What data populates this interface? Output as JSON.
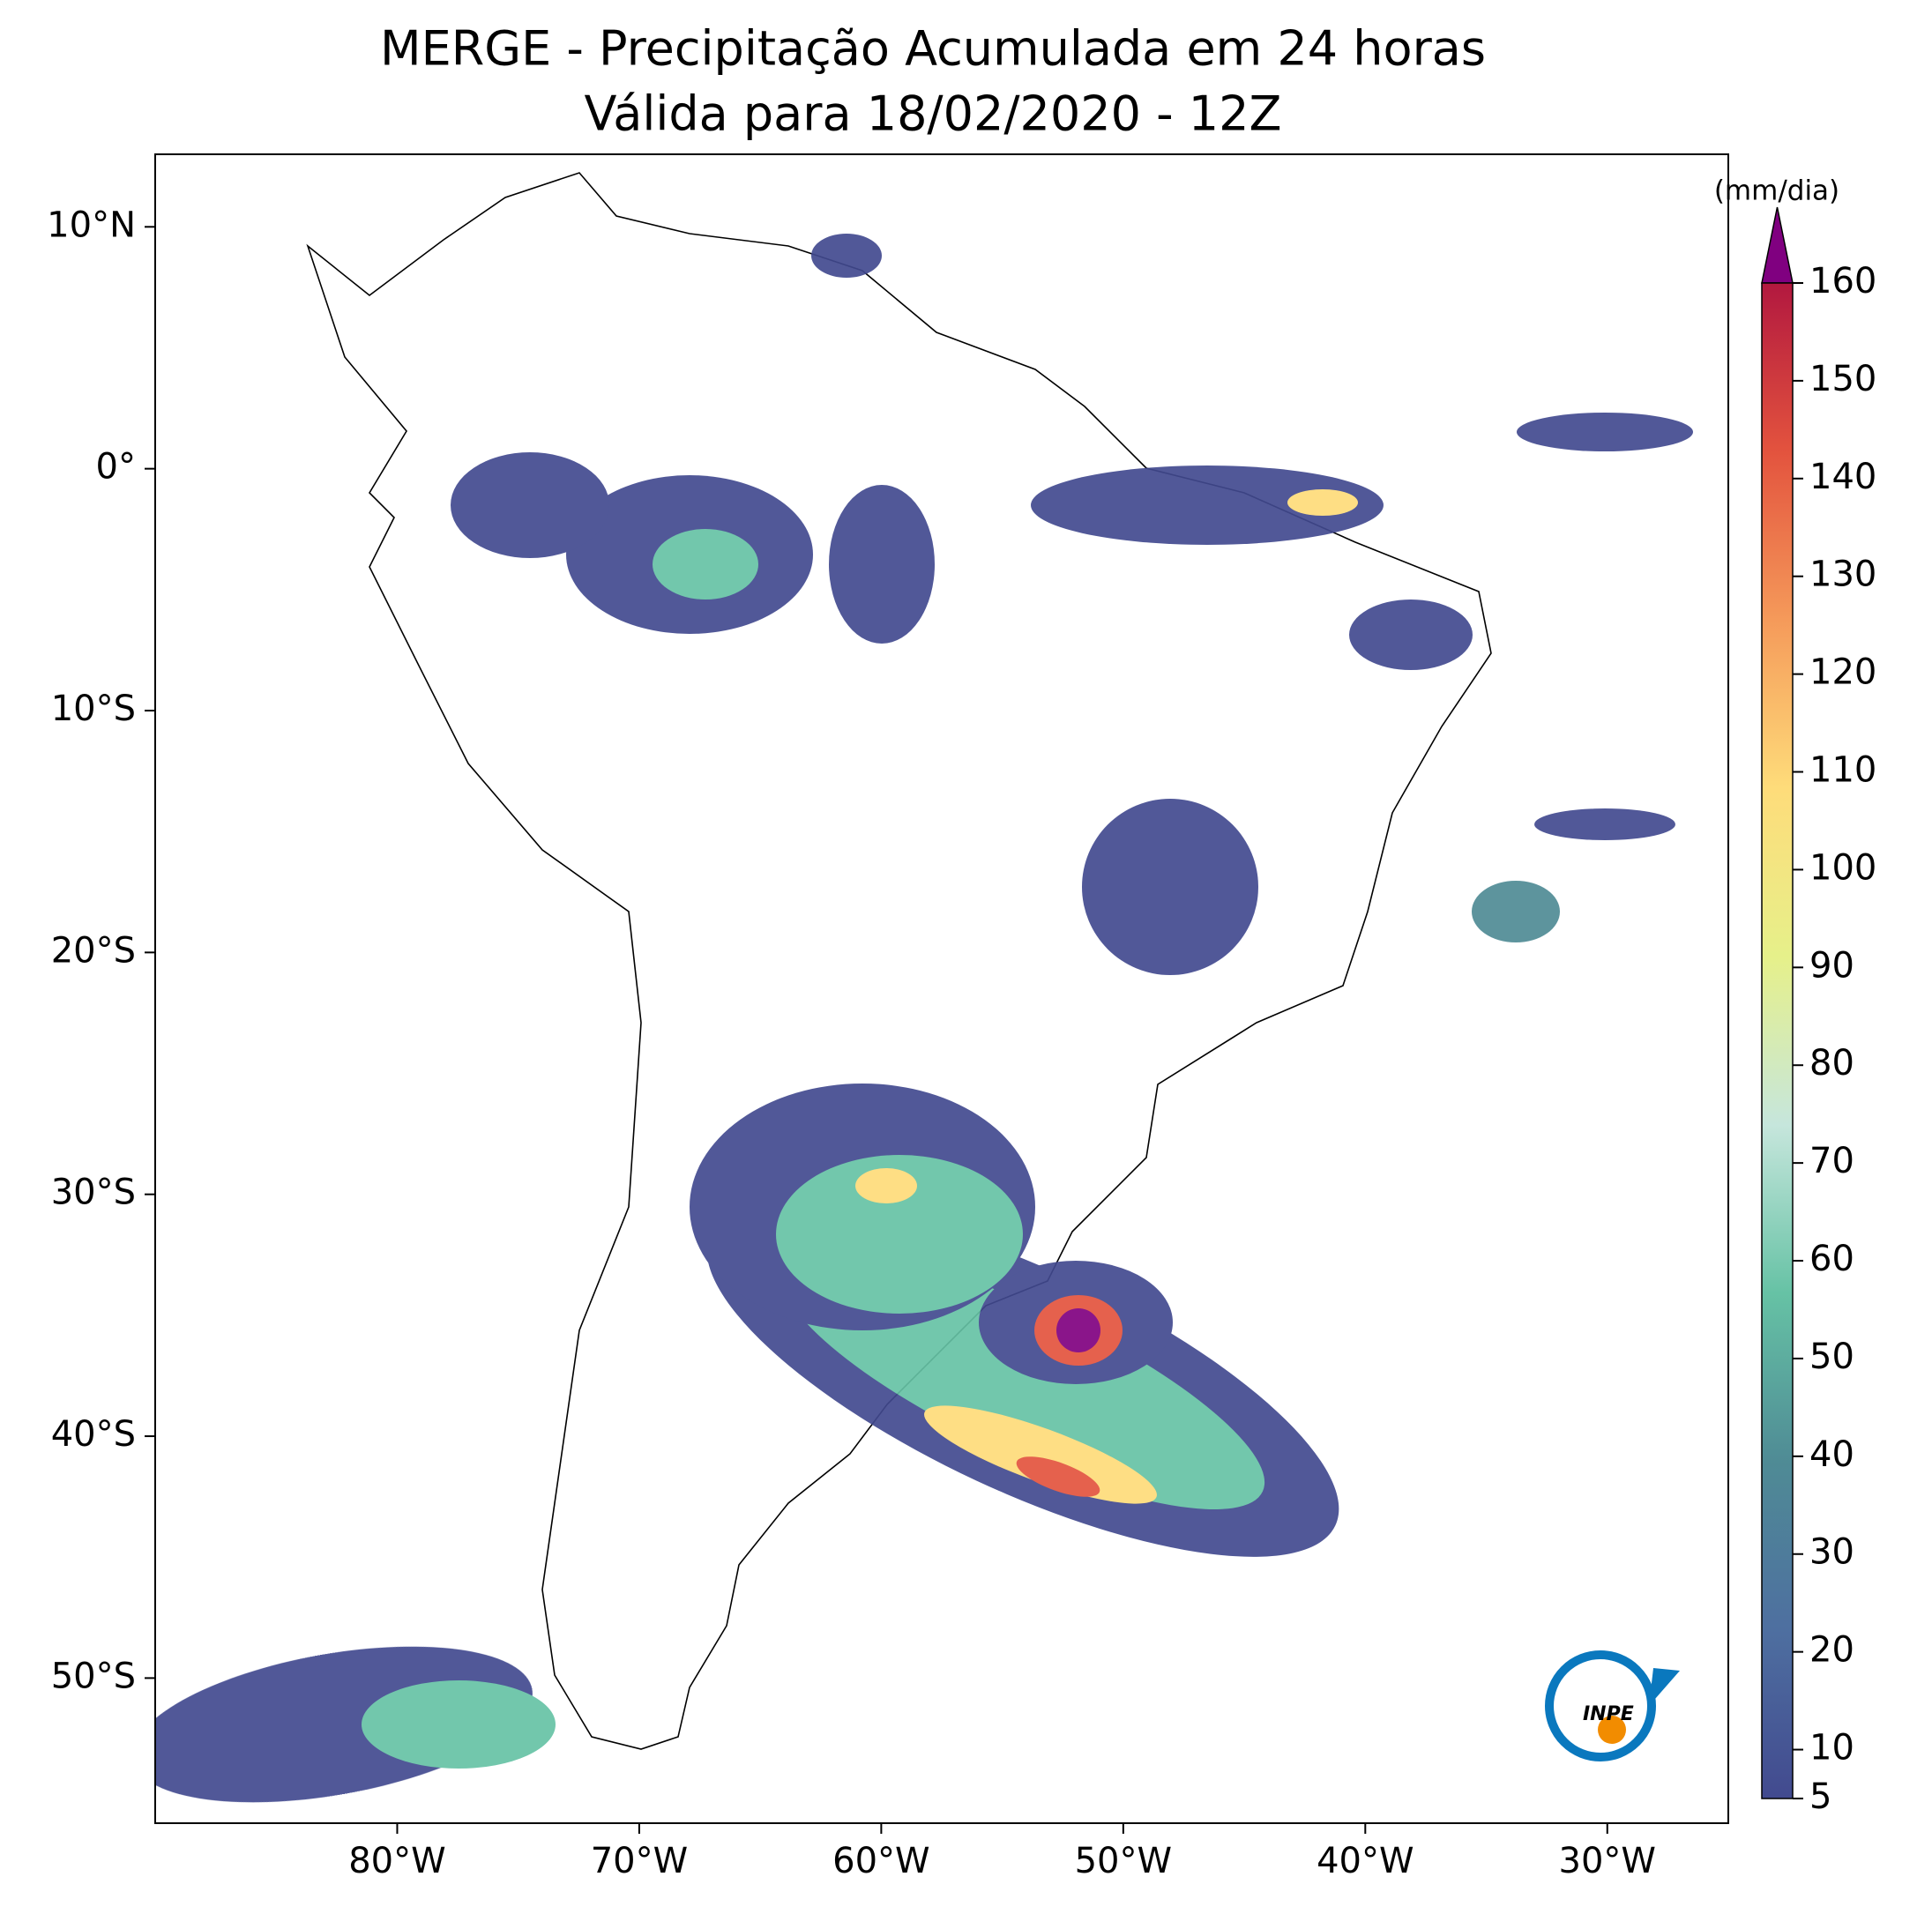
{
  "title": [
    "MERGE - Precipitação Acumulada em 24 horas",
    "Válida para 18/02/2020 - 12Z"
  ],
  "map": {
    "xlim": [
      -90,
      -25
    ],
    "ylim": [
      -56,
      13
    ],
    "xticks": [
      {
        "value": -80,
        "label": "80°W"
      },
      {
        "value": -70,
        "label": "70°W"
      },
      {
        "value": -60,
        "label": "60°W"
      },
      {
        "value": -50,
        "label": "50°W"
      },
      {
        "value": -40,
        "label": "40°W"
      },
      {
        "value": -30,
        "label": "30°W"
      }
    ],
    "yticks": [
      {
        "value": 10,
        "label": "10°N"
      },
      {
        "value": 0,
        "label": "0°"
      },
      {
        "value": -10,
        "label": "10°S"
      },
      {
        "value": -20,
        "label": "20°S"
      },
      {
        "value": -30,
        "label": "30°S"
      },
      {
        "value": -40,
        "label": "40°S"
      },
      {
        "value": -50,
        "label": "50°S"
      }
    ]
  },
  "colorbar": {
    "label": "(mm/dia)",
    "lim": [
      5,
      160
    ],
    "ticks": [
      5,
      10,
      20,
      30,
      40,
      50,
      60,
      70,
      80,
      90,
      100,
      110,
      120,
      130,
      140,
      150,
      160
    ],
    "colors": [
      "#424a8f",
      "#4e6fa0",
      "#4f8b95",
      "#66c2a5",
      "#c6e6dc",
      "#e6f08a",
      "#fedc7a",
      "#f59a5a",
      "#e3533e",
      "#b2183f"
    ],
    "extend_color": "#800080"
  },
  "logo": "INPE"
}
